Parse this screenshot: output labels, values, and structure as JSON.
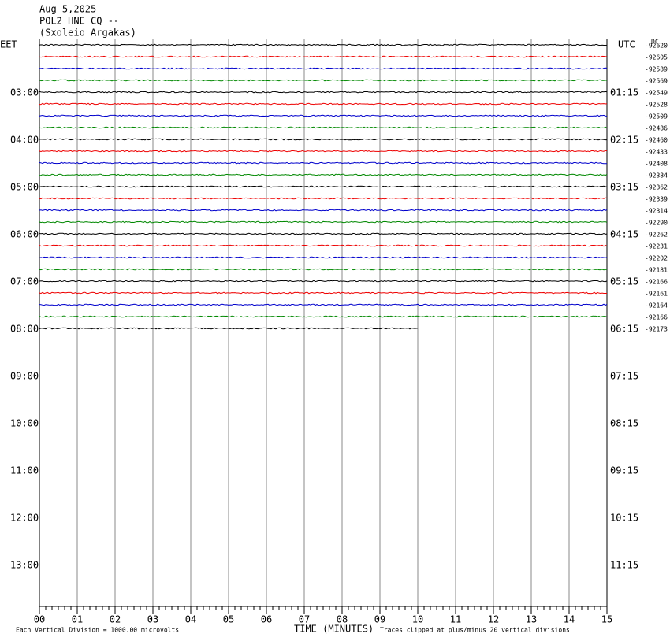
{
  "header": {
    "lines": [
      "Aug 5,2025",
      "POL2 HNE CQ --",
      "(Sxoleio Argakas)"
    ]
  },
  "left_axis": {
    "title": "EET",
    "labels": [
      "03:00",
      "04:00",
      "05:00",
      "06:00",
      "07:00",
      "08:00",
      "09:00",
      "10:00",
      "11:00",
      "12:00",
      "13:00"
    ]
  },
  "right_axis": {
    "title": "UTC",
    "labels": [
      "01:15",
      "02:15",
      "03:15",
      "04:15",
      "05:15",
      "06:15",
      "07:15",
      "08:15",
      "09:15",
      "10:15",
      "11:15"
    ]
  },
  "dc": {
    "title": "DC",
    "values": [
      -92620,
      -92605,
      -92589,
      -92569,
      -92549,
      -92528,
      -92509,
      -92486,
      -92460,
      -92433,
      -92408,
      -92384,
      -92362,
      -92339,
      -92314,
      -92290,
      -92262,
      -92231,
      -92202,
      -92181,
      -92166,
      -92161,
      -92164,
      -92166,
      -92173
    ]
  },
  "x_axis": {
    "title": "TIME (MINUTES)",
    "labels": [
      "00",
      "01",
      "02",
      "03",
      "04",
      "05",
      "06",
      "07",
      "08",
      "09",
      "10",
      "11",
      "12",
      "13",
      "14",
      "15"
    ]
  },
  "footer": {
    "scale_note": "Each Vertical Division = 1000.00 microvolts",
    "clip_note": "Traces clipped at plus/minus 20 vertical divisions"
  }
}
